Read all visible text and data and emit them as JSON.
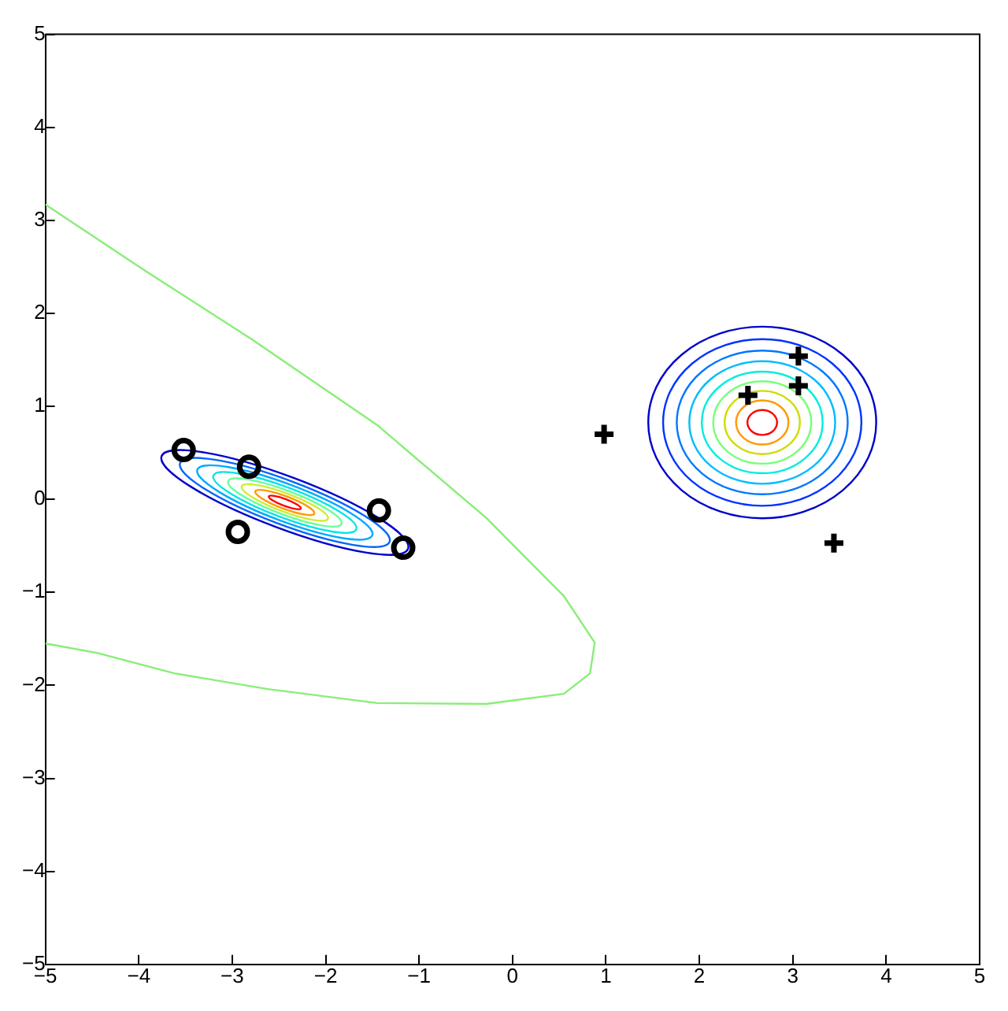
{
  "chart_data": {
    "type": "scatter",
    "xlim": [
      -5,
      5
    ],
    "ylim": [
      -5,
      5
    ],
    "xticks": [
      -5,
      -4,
      -3,
      -2,
      -1,
      0,
      1,
      2,
      3,
      4,
      5
    ],
    "yticks": [
      -5,
      -4,
      -3,
      -2,
      -1,
      0,
      1,
      2,
      3,
      4,
      5
    ],
    "grid": false,
    "legend": false,
    "series": [
      {
        "type": "line",
        "color": "#88ee77",
        "x": [
          -5,
          -3.95,
          -2.79,
          -1.45,
          -0.28,
          0.55,
          0.88,
          0.83,
          0.55,
          -0.28,
          -1.45,
          -2.62,
          -3.62,
          -4.45,
          -5
        ],
        "values": [
          3.17,
          2.47,
          1.72,
          0.8,
          -0.2,
          -1.04,
          -1.54,
          -1.87,
          -2.09,
          -2.2,
          -2.19,
          -2.04,
          -1.87,
          -1.65,
          -1.55
        ]
      },
      {
        "type": "scatter",
        "marker": "circle",
        "color": "#000000",
        "x": [
          -3.52,
          -2.82,
          -2.94,
          -1.43,
          -1.17
        ],
        "values": [
          0.53,
          0.35,
          -0.35,
          -0.12,
          -0.52
        ]
      },
      {
        "type": "scatter",
        "marker": "cross",
        "color": "#000000",
        "x": [
          0.98,
          2.52,
          3.06,
          3.06,
          3.44
        ],
        "values": [
          0.7,
          1.12,
          1.54,
          1.22,
          -0.47
        ]
      }
    ]
  }
}
